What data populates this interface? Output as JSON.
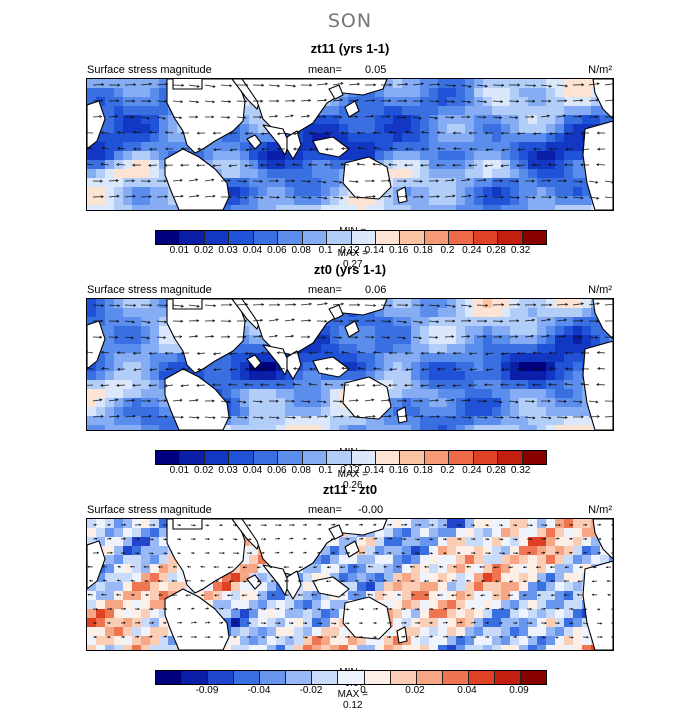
{
  "season": "SON",
  "panels": [
    {
      "title": "zt11 (yrs 1-1)",
      "field_label": "Surface stress magnitude",
      "mean_label": "mean=",
      "mean_value": "0.05",
      "units": "N/m²",
      "min_label": "MIN =",
      "min_value": "0.00",
      "max_label": "MAX =",
      "max_value": "0.27",
      "colorbar_ticks": [
        "0.01",
        "0.02",
        "0.03",
        "0.04",
        "0.06",
        "0.08",
        "0.1",
        "0.12",
        "0.14",
        "0.16",
        "0.18",
        "0.2",
        "0.24",
        "0.28",
        "0.32"
      ]
    },
    {
      "title": "zt0 (yrs 1-1)",
      "field_label": "Surface stress magnitude",
      "mean_label": "mean=",
      "mean_value": "0.06",
      "units": "N/m²",
      "min_label": "MIN =",
      "min_value": "0.00",
      "max_label": "MAX =",
      "max_value": "0.26",
      "colorbar_ticks": [
        "0.01",
        "0.02",
        "0.03",
        "0.04",
        "0.06",
        "0.08",
        "0.1",
        "0.12",
        "0.14",
        "0.16",
        "0.18",
        "0.2",
        "0.24",
        "0.28",
        "0.32"
      ]
    },
    {
      "title": "zt11 - zt0",
      "field_label": "Surface stress magnitude",
      "mean_label": "mean=",
      "mean_value": "-0.00",
      "units": "N/m²",
      "min_label": "MIN =",
      "min_value": "-0.07",
      "max_label": "MAX =",
      "max_value": "0.12",
      "colorbar_ticks": [
        "-0.09",
        "-0.04",
        "-0.02",
        "0",
        "0.02",
        "0.04",
        "0.09"
      ]
    }
  ],
  "colors": {
    "seq": [
      "#00007f",
      "#0a1ea8",
      "#1237c2",
      "#1f52d6",
      "#3a6fe2",
      "#5b8eec",
      "#86adf3",
      "#b2cdf8",
      "#dbe8fb",
      "#fde3d4",
      "#fbc2a4",
      "#f69a76",
      "#ee6a48",
      "#df4124",
      "#c41e10",
      "#880000"
    ],
    "div": [
      "#00007f",
      "#0a1ea8",
      "#1f46cc",
      "#3a6fe2",
      "#6895ee",
      "#98b9f5",
      "#c8dbfa",
      "#eef3fd",
      "#fdeee6",
      "#fbcdb4",
      "#f6a585",
      "#ee7452",
      "#df4124",
      "#c41e10",
      "#880000"
    ]
  }
}
